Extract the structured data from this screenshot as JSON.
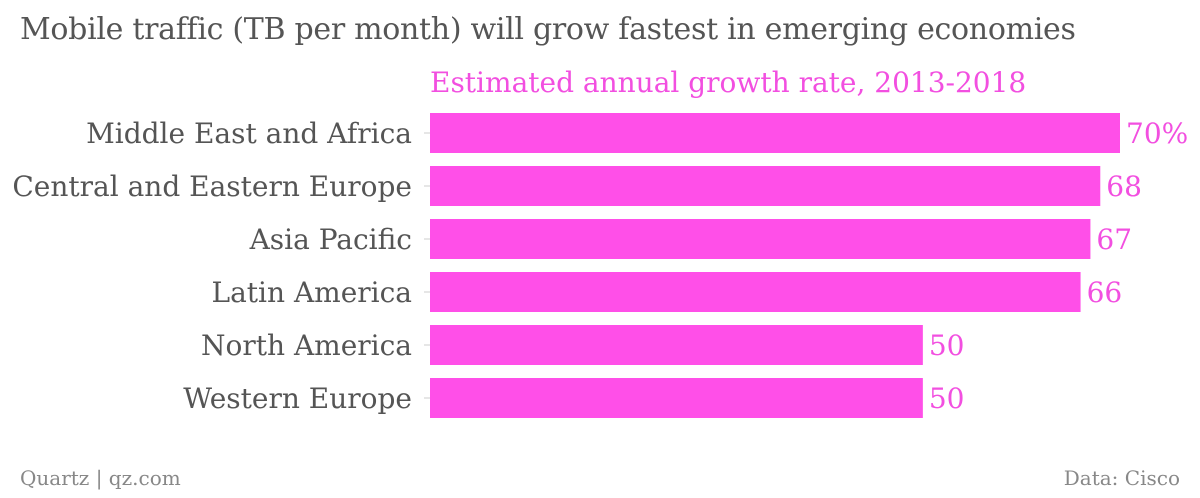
{
  "chart_title": "Mobile traffic (TB per month) will grow fastest in emerging economies",
  "footer": {
    "source_left": "Quartz | qz.com",
    "source_right": "Data: Cisco"
  },
  "colors": {
    "bar": "#ff4fe8",
    "series_label": "#f24fe0",
    "category_label": "#555555",
    "value_label": "#f24fe0"
  },
  "chart_data": {
    "type": "bar",
    "orientation": "horizontal",
    "title": "Mobile traffic (TB per month) will grow fastest in emerging economies",
    "series": [
      {
        "name": "Estimated annual growth rate, 2013-2018",
        "values": [
          70,
          68,
          67,
          66,
          50,
          50
        ]
      }
    ],
    "categories": [
      "Middle East and Africa",
      "Central and Eastern Europe",
      "Asia Pacific",
      "Latin America",
      "North America",
      "Western Europe"
    ],
    "value_labels": [
      "70%",
      "68",
      "67",
      "66",
      "50",
      "50"
    ],
    "xlim": [
      0,
      70
    ],
    "grid": false,
    "legend": "top"
  }
}
